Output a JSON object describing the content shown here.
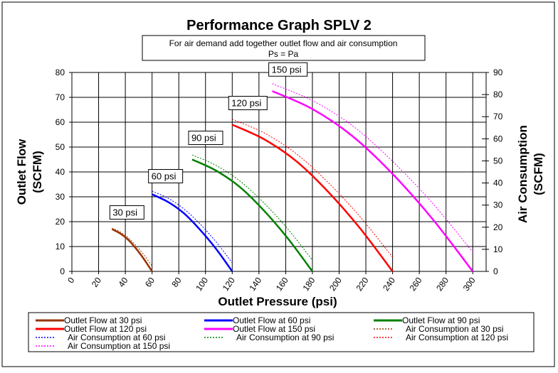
{
  "chart_data": {
    "type": "line",
    "title": "Performance Graph SPLV 2",
    "subtitle_lines": [
      "For air demand add together outlet flow and air consumption",
      "Ps = Pa"
    ],
    "xlabel": "Outlet Pressure (psi)",
    "ylabel": "Outlet Flow (SCFM)",
    "y2label": "Air Consumption (SCFM)",
    "xlim": [
      0,
      310
    ],
    "ylim": [
      0,
      80
    ],
    "y2lim": [
      0,
      90
    ],
    "xticks": [
      0,
      20,
      40,
      60,
      80,
      100,
      120,
      140,
      160,
      180,
      200,
      220,
      240,
      260,
      280,
      300
    ],
    "yticks": [
      0,
      10,
      20,
      30,
      40,
      50,
      60,
      70,
      80
    ],
    "y2ticks": [
      0,
      10,
      20,
      30,
      40,
      50,
      60,
      70,
      80,
      90
    ],
    "grid": true,
    "legend_position": "bottom",
    "annotations": [
      {
        "text": "30 psi",
        "x": 30
      },
      {
        "text": "60 psi",
        "x": 60
      },
      {
        "text": "90 psi",
        "x": 90
      },
      {
        "text": "120 psi",
        "x": 120
      },
      {
        "text": "150 psi",
        "x": 150
      }
    ],
    "series": [
      {
        "name": "Outlet Flow at 30 psi",
        "axis": "left",
        "style": "solid",
        "color": "#993300",
        "x": [
          30,
          36,
          42,
          48,
          54,
          60
        ],
        "y": [
          17,
          15.3,
          12.8,
          9.2,
          4.9,
          0
        ]
      },
      {
        "name": "Outlet Flow at 60 psi",
        "axis": "left",
        "style": "solid",
        "color": "#0000ff",
        "x": [
          60,
          72,
          84,
          96,
          108,
          120
        ],
        "y": [
          31,
          27.9,
          23.3,
          16.7,
          9,
          0
        ]
      },
      {
        "name": "Outlet Flow at 90 psi",
        "axis": "left",
        "style": "solid",
        "color": "#008000",
        "x": [
          90,
          108,
          126,
          144,
          162,
          180
        ],
        "y": [
          45,
          40.5,
          33.8,
          24.3,
          13,
          0
        ]
      },
      {
        "name": "Outlet Flow at 120 psi",
        "axis": "left",
        "style": "solid",
        "color": "#ff0000",
        "x": [
          120,
          144,
          168,
          192,
          216,
          240
        ],
        "y": [
          59,
          53.1,
          44.3,
          31.9,
          17.1,
          0
        ]
      },
      {
        "name": "Outlet Flow at 150 psi",
        "axis": "left",
        "style": "solid",
        "color": "#ff00ff",
        "x": [
          150,
          180,
          210,
          240,
          270,
          300
        ],
        "y": [
          72.5,
          65.3,
          54.4,
          39.2,
          21,
          0
        ]
      },
      {
        "name": "Air Consumption at 30 psi",
        "axis": "right",
        "style": "dotted",
        "color": "#993300",
        "x": [
          30,
          36,
          42,
          48,
          54,
          60
        ],
        "y": [
          19.6,
          17.9,
          15.3,
          11.7,
          7.4,
          2.5
        ]
      },
      {
        "name": "Air Consumption at 60 psi",
        "axis": "right",
        "style": "dotted",
        "color": "#0000ff",
        "x": [
          60,
          72,
          84,
          96,
          108,
          120
        ],
        "y": [
          36.3,
          33.1,
          28.2,
          21.4,
          13.3,
          3.9
        ]
      },
      {
        "name": "Air Consumption at 90 psi",
        "axis": "right",
        "style": "dotted",
        "color": "#008000",
        "x": [
          90,
          108,
          126,
          144,
          162,
          180
        ],
        "y": [
          52.7,
          47.9,
          40.8,
          30.8,
          18.9,
          5.1
        ]
      },
      {
        "name": "Air Consumption at 120 psi",
        "axis": "right",
        "style": "dotted",
        "color": "#ff0000",
        "x": [
          120,
          144,
          168,
          192,
          216,
          240
        ],
        "y": [
          68.8,
          62.6,
          53.2,
          40.1,
          24.5,
          6.4
        ]
      },
      {
        "name": "Air Consumption at 150 psi",
        "axis": "right",
        "style": "dotted",
        "color": "#ff00ff",
        "x": [
          150,
          180,
          210,
          240,
          270,
          300
        ],
        "y": [
          84.9,
          77.3,
          65.9,
          49.8,
          30.8,
          8.7
        ]
      }
    ]
  }
}
